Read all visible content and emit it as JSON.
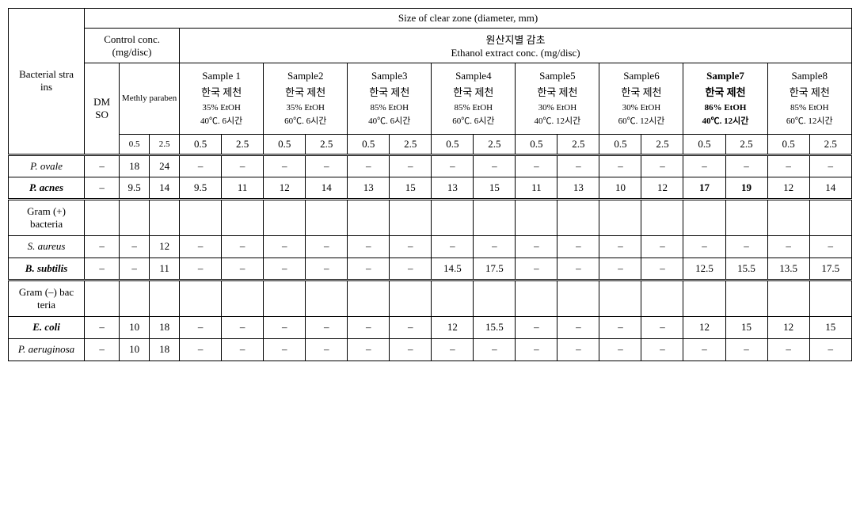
{
  "title": "Size of clear zone (diameter, mm)",
  "control_header": "Control conc.\n(mg/disc)",
  "origin_header": "원산지별 감초\nEthanol extract conc. (mg/disc)",
  "row_header": "Bacterial stra\nins",
  "dmso": "DM\nSO",
  "mp": "Methly paraben",
  "conc05_sm": "0.5",
  "conc25_sm": "2.5",
  "conc05": "0.5",
  "conc25": "2.5",
  "samples": [
    {
      "name": "Sample 1",
      "origin": "한국 제천",
      "ext": "35% EtOH",
      "cond": "40℃. 6시간",
      "bold": false
    },
    {
      "name": "Sample2",
      "origin": "한국 제천",
      "ext": "35% EtOH",
      "cond": "60℃. 6시간",
      "bold": false
    },
    {
      "name": "Sample3",
      "origin": "한국 제천",
      "ext": "85% EtOH",
      "cond": "40℃. 6시간",
      "bold": false
    },
    {
      "name": "Sample4",
      "origin": "한국 제천",
      "ext": "85% EtOH",
      "cond": "60℃. 6시간",
      "bold": false
    },
    {
      "name": "Sample5",
      "origin": "한국 제천",
      "ext": "30% EtOH",
      "cond": "40℃. 12시간",
      "bold": false
    },
    {
      "name": "Sample6",
      "origin": "한국 제천",
      "ext": "30% EtOH",
      "cond": "60℃. 12시간",
      "bold": false
    },
    {
      "name": "Sample7",
      "origin": "한국 제천",
      "ext": "86% EtOH",
      "cond": "40℃. 12시간",
      "bold": true
    },
    {
      "name": "Sample8",
      "origin": "한국 제천",
      "ext": "85% EtOH",
      "cond": "60℃. 12시간",
      "bold": false
    }
  ],
  "data_rows": [
    {
      "label": "P. ovale",
      "italic": true,
      "bold": false,
      "dmso": "–",
      "mp": [
        "18",
        "24"
      ],
      "s": [
        [
          "–",
          "–"
        ],
        [
          "–",
          "–"
        ],
        [
          "–",
          "–"
        ],
        [
          "–",
          "–"
        ],
        [
          "–",
          "–"
        ],
        [
          "–",
          "–"
        ],
        [
          "–",
          "–"
        ],
        [
          "–",
          "–"
        ]
      ],
      "bold_cols": []
    },
    {
      "label": "P. acnes",
      "italic": true,
      "bold": true,
      "dmso": "–",
      "mp": [
        "9.5",
        "14"
      ],
      "s": [
        [
          "9.5",
          "11"
        ],
        [
          "12",
          "14"
        ],
        [
          "13",
          "15"
        ],
        [
          "13",
          "15"
        ],
        [
          "11",
          "13"
        ],
        [
          "10",
          "12"
        ],
        [
          "17",
          "19"
        ],
        [
          "12",
          "14"
        ]
      ],
      "bold_cols": [
        6
      ]
    }
  ],
  "gram_pos_label": "Gram (+)\nbacteria",
  "gram_pos_rows": [
    {
      "label": "S. aureus",
      "italic": true,
      "bold": false,
      "dmso": "–",
      "mp": [
        "–",
        "12"
      ],
      "s": [
        [
          "–",
          "–"
        ],
        [
          "–",
          "–"
        ],
        [
          "–",
          "–"
        ],
        [
          "–",
          "–"
        ],
        [
          "–",
          "–"
        ],
        [
          "–",
          "–"
        ],
        [
          "–",
          "–"
        ],
        [
          "–",
          "–"
        ]
      ],
      "bold_cols": []
    },
    {
      "label": "B. subtilis",
      "italic": true,
      "bold": true,
      "dmso": "–",
      "mp": [
        "–",
        "11"
      ],
      "s": [
        [
          "–",
          "–"
        ],
        [
          "–",
          "–"
        ],
        [
          "–",
          "–"
        ],
        [
          "14.5",
          "17.5"
        ],
        [
          "–",
          "–"
        ],
        [
          "–",
          "–"
        ],
        [
          "12.5",
          "15.5"
        ],
        [
          "13.5",
          "17.5"
        ]
      ],
      "bold_cols": []
    }
  ],
  "gram_neg_label": "Gram (–) bac\nteria",
  "gram_neg_rows": [
    {
      "label": "E. coli",
      "italic": true,
      "bold": true,
      "dmso": "–",
      "mp": [
        "10",
        "18"
      ],
      "s": [
        [
          "–",
          "–"
        ],
        [
          "–",
          "–"
        ],
        [
          "–",
          "–"
        ],
        [
          "12",
          "15.5"
        ],
        [
          "–",
          "–"
        ],
        [
          "–",
          "–"
        ],
        [
          "12",
          "15"
        ],
        [
          "12",
          "15"
        ]
      ],
      "bold_cols": []
    },
    {
      "label": "P. aeruginosa",
      "italic": true,
      "bold": false,
      "dmso": "–",
      "mp": [
        "10",
        "18"
      ],
      "s": [
        [
          "–",
          "–"
        ],
        [
          "–",
          "–"
        ],
        [
          "–",
          "–"
        ],
        [
          "–",
          "–"
        ],
        [
          "–",
          "–"
        ],
        [
          "–",
          "–"
        ],
        [
          "–",
          "–"
        ],
        [
          "–",
          "–"
        ]
      ],
      "bold_cols": []
    }
  ]
}
